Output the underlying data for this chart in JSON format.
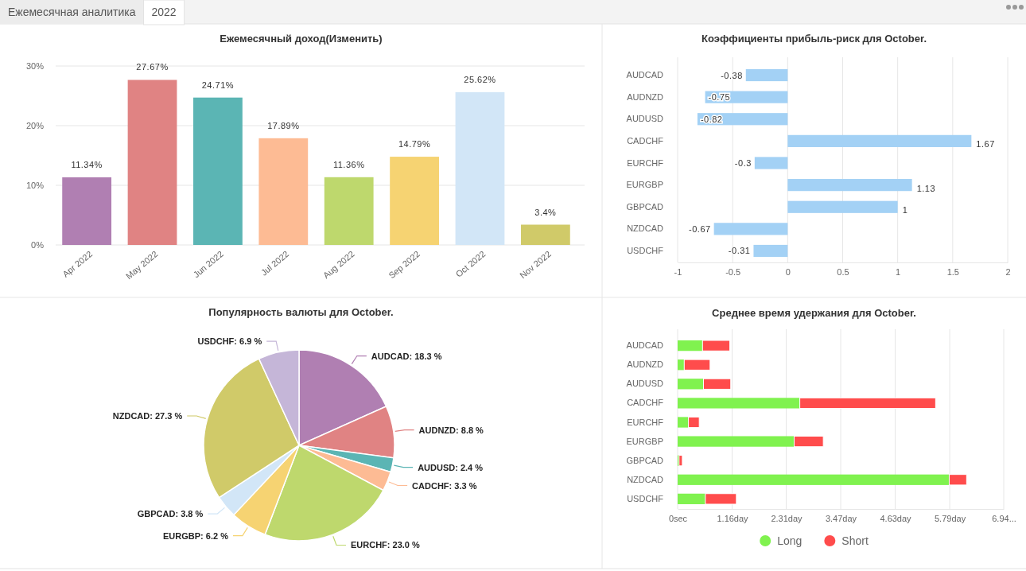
{
  "chart_data": [
    {
      "type": "bar",
      "title": "Ежемесячный доход(Изменить)",
      "annotations": [
        "Ежемесячная аналитика",
        "2022"
      ],
      "categories": [
        "Apr 2022",
        "May 2022",
        "Jun 2022",
        "Jul 2022",
        "Aug 2022",
        "Sep 2022",
        "Oct 2022",
        "Nov 2022"
      ],
      "values": [
        11.34,
        27.67,
        24.71,
        17.89,
        11.36,
        14.79,
        25.62,
        3.4
      ],
      "colors": [
        "#b07fb2",
        "#e08383",
        "#5bb5b4",
        "#fdbb94",
        "#bed86d",
        "#f6d372",
        "#d2e6f7",
        "#d0ca69"
      ],
      "value_labels": [
        "11.34%",
        "27.67%",
        "24.71%",
        "17.89%",
        "11.36%",
        "14.79%",
        "25.62%",
        "3.4%"
      ],
      "ylim": [
        0,
        30
      ],
      "yticks": [
        {
          "value": 0,
          "label": "0%"
        },
        {
          "value": 10,
          "label": "10%"
        },
        {
          "value": 20,
          "label": "20%"
        },
        {
          "value": 30,
          "label": "30%"
        }
      ],
      "grid": "y"
    },
    {
      "type": "bar",
      "orientation": "horizontal",
      "title": "Коэффициенты прибыль-риск для October.",
      "categories": [
        "AUDCAD",
        "AUDNZD",
        "AUDUSD",
        "CADCHF",
        "EURCHF",
        "EURGBP",
        "GBPCAD",
        "NZDCAD",
        "USDCHF"
      ],
      "values": [
        -0.38,
        -0.75,
        -0.82,
        1.67,
        -0.3,
        1.13,
        1,
        -0.67,
        -0.31
      ],
      "color": "#a3d1f5",
      "data_labels": true,
      "xlim": [
        -1,
        2
      ],
      "xticks": [
        -1,
        -0.5,
        0,
        0.5,
        1,
        1.5,
        2
      ],
      "grid": "x"
    },
    {
      "type": "pie",
      "title": "Популярность валюты для October.",
      "categories": [
        "AUDCAD",
        "AUDNZD",
        "AUDUSD",
        "CADCHF",
        "EURCHF",
        "EURGBP",
        "GBPCAD",
        "NZDCAD",
        "USDCHF"
      ],
      "values": [
        18.3,
        8.8,
        2.4,
        3.3,
        23.0,
        6.2,
        3.8,
        27.3,
        6.9
      ],
      "colors": [
        "#b07fb2",
        "#e08383",
        "#5bb5b4",
        "#fdbb94",
        "#bed86d",
        "#f6d372",
        "#d2e6f7",
        "#d0ca69",
        "#c5b6d8"
      ],
      "value_labels": [
        ": 18.3 %",
        ": 8.8 %",
        ": 2.4 %",
        ": 3.3 %",
        ": 23.0 %",
        ": 6.2 %",
        ": 3.8 %",
        ": 27.3 %",
        ": 6.9 %"
      ]
    },
    {
      "type": "bar",
      "orientation": "horizontal",
      "stacked": true,
      "title": "Среднее время удержания для October.",
      "categories": [
        "AUDCAD",
        "AUDNZD",
        "AUDUSD",
        "CADCHF",
        "EURCHF",
        "EURGBP",
        "GBPCAD",
        "NZDCAD",
        "USDCHF"
      ],
      "series": [
        {
          "name": "Long",
          "color": "#80f24f",
          "values": [
            0.53,
            0.14,
            0.55,
            2.6,
            0.23,
            2.48,
            0.03,
            5.78,
            0.59
          ]
        },
        {
          "name": "Short",
          "color": "#ff4c4c",
          "values": [
            0.58,
            0.55,
            0.58,
            2.89,
            0.23,
            0.62,
            0.07,
            0.37,
            0.66
          ]
        }
      ],
      "xlim": [
        0,
        6.94
      ],
      "xticks": [
        {
          "value": 0,
          "label": "0sec"
        },
        {
          "value": 1.16,
          "label": "1.16day"
        },
        {
          "value": 2.31,
          "label": "2.31day"
        },
        {
          "value": 3.47,
          "label": "3.47day"
        },
        {
          "value": 4.63,
          "label": "4.63day"
        },
        {
          "value": 5.79,
          "label": "5.79day"
        },
        {
          "value": 6.94,
          "label": "6.94..."
        }
      ],
      "grid": "x",
      "legend": "bottom"
    }
  ]
}
